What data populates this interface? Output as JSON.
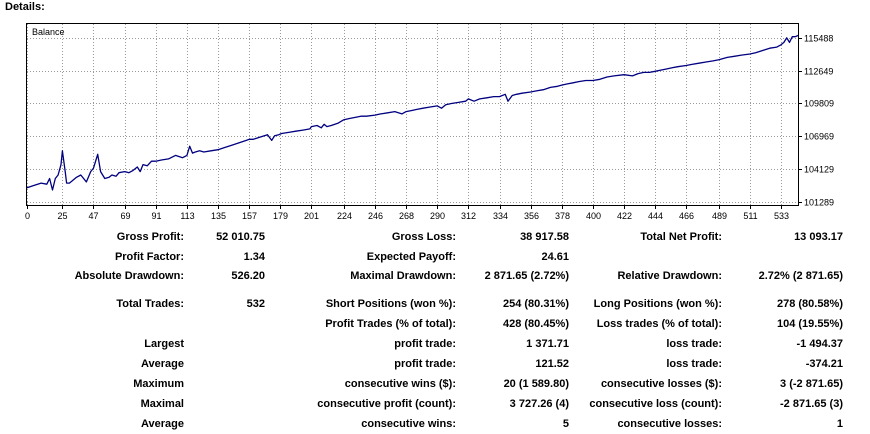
{
  "header": {
    "title": "Details:"
  },
  "chart_data": {
    "type": "line",
    "title": "Balance",
    "xlabel": "",
    "ylabel": "",
    "xlim": [
      0,
      545
    ],
    "ylim": [
      101000,
      116700
    ],
    "x_ticks": [
      0,
      25,
      47,
      69,
      91,
      113,
      135,
      157,
      179,
      201,
      224,
      246,
      268,
      290,
      312,
      334,
      356,
      378,
      400,
      422,
      444,
      466,
      489,
      511,
      533
    ],
    "y_ticks": [
      101289,
      104129,
      106969,
      109809,
      112649,
      115488
    ],
    "grid": true,
    "legend": "none",
    "series": [
      {
        "color": "#000080",
        "x": [
          0,
          5,
          10,
          14,
          16,
          18,
          20,
          22,
          24,
          25,
          27,
          28,
          30,
          32,
          35,
          38,
          40,
          42,
          45,
          47,
          48,
          50,
          52,
          55,
          58,
          60,
          63,
          65,
          69,
          72,
          75,
          78,
          80,
          82,
          85,
          88,
          91,
          95,
          100,
          105,
          110,
          113,
          115,
          117,
          119,
          122,
          125,
          130,
          135,
          140,
          145,
          150,
          155,
          157,
          160,
          165,
          170,
          173,
          175,
          178,
          180,
          185,
          190,
          195,
          200,
          201,
          205,
          208,
          210,
          212,
          215,
          220,
          224,
          228,
          232,
          236,
          240,
          246,
          250,
          255,
          260,
          265,
          268,
          272,
          276,
          280,
          285,
          290,
          293,
          296,
          300,
          305,
          310,
          312,
          316,
          320,
          325,
          330,
          334,
          338,
          340,
          343,
          346,
          350,
          356,
          360,
          365,
          370,
          375,
          378,
          382,
          386,
          390,
          395,
          400,
          405,
          410,
          415,
          422,
          428,
          432,
          436,
          440,
          444,
          448,
          452,
          456,
          460,
          466,
          470,
          475,
          480,
          485,
          489,
          495,
          500,
          505,
          511,
          515,
          520,
          525,
          530,
          533,
          535,
          537,
          539,
          541,
          543,
          545
        ],
        "y": [
          102500,
          102700,
          102900,
          102800,
          103300,
          102300,
          103300,
          103600,
          104500,
          105700,
          103900,
          102900,
          102900,
          103100,
          103400,
          103600,
          103300,
          103000,
          103900,
          104200,
          104600,
          105400,
          103900,
          103300,
          103400,
          103600,
          103500,
          103800,
          103900,
          103800,
          104000,
          104300,
          103900,
          104500,
          104400,
          104800,
          104800,
          104900,
          105000,
          105300,
          105100,
          105300,
          106100,
          105500,
          105600,
          105700,
          105600,
          105700,
          105800,
          106000,
          106200,
          106400,
          106600,
          106700,
          106700,
          106900,
          107100,
          106600,
          107000,
          107100,
          107200,
          107300,
          107400,
          107500,
          107600,
          107800,
          107900,
          107700,
          108000,
          107800,
          107900,
          108100,
          108400,
          108500,
          108600,
          108700,
          108700,
          108800,
          108900,
          109000,
          109100,
          108900,
          109100,
          109200,
          109300,
          109400,
          109500,
          109600,
          109400,
          109700,
          109800,
          109900,
          110000,
          110200,
          110000,
          110200,
          110300,
          110400,
          110400,
          110600,
          110000,
          110500,
          110600,
          110700,
          110800,
          110900,
          111000,
          111200,
          111300,
          111400,
          111500,
          111600,
          111700,
          111800,
          111800,
          111900,
          112100,
          112200,
          112300,
          112200,
          112400,
          112500,
          112500,
          112600,
          112700,
          112800,
          112900,
          113000,
          113100,
          113200,
          113300,
          113400,
          113500,
          113600,
          113800,
          113900,
          114000,
          114100,
          114200,
          114400,
          114600,
          114700,
          114900,
          115100,
          115500,
          115100,
          115600,
          115600,
          115700
        ]
      }
    ]
  },
  "stats": {
    "row1": {
      "c1_label": "Gross Profit:",
      "c1_value": "52 010.75",
      "c2_label": "Gross Loss:",
      "c2_value": "38 917.58",
      "c3_label": "Total Net Profit:",
      "c3_value": "13 093.17"
    },
    "row2": {
      "c1_label": "Profit Factor:",
      "c1_value": "1.34",
      "c2_label": "Expected Payoff:",
      "c2_value": "24.61"
    },
    "row3": {
      "c1_label": "Absolute Drawdown:",
      "c1_value": "526.20",
      "c2_label": "Maximal Drawdown:",
      "c2_value": "2 871.65 (2.72%)",
      "c3_label": "Relative Drawdown:",
      "c3_value": "2.72% (2 871.65)"
    },
    "row4": {
      "c1_label": "Total Trades:",
      "c1_value": "532",
      "c2_label": "Short Positions (won %):",
      "c2_value": "254 (80.31%)",
      "c3_label": "Long Positions (won %):",
      "c3_value": "278 (80.58%)"
    },
    "row5": {
      "c2_label": "Profit Trades (% of total):",
      "c2_value": "428 (80.45%)",
      "c3_label": "Loss trades (% of total):",
      "c3_value": "104 (19.55%)"
    },
    "row6": {
      "c1_label": "Largest",
      "c2_label": "profit trade:",
      "c2_value": "1 371.71",
      "c3_label": "loss trade:",
      "c3_value": "-1 494.37"
    },
    "row7": {
      "c1_label": "Average",
      "c2_label": "profit trade:",
      "c2_value": "121.52",
      "c3_label": "loss trade:",
      "c3_value": "-374.21"
    },
    "row8": {
      "c1_label": "Maximum",
      "c2_label": "consecutive wins ($):",
      "c2_value": "20 (1 589.80)",
      "c3_label": "consecutive losses ($):",
      "c3_value": "3 (-2 871.65)"
    },
    "row9": {
      "c1_label": "Maximal",
      "c2_label": "consecutive profit (count):",
      "c2_value": "3 727.26 (4)",
      "c3_label": "consecutive loss (count):",
      "c3_value": "-2 871.65 (3)"
    },
    "row10": {
      "c1_label": "Average",
      "c2_label": "consecutive wins:",
      "c2_value": "5",
      "c3_label": "consecutive losses:",
      "c3_value": "1"
    }
  }
}
